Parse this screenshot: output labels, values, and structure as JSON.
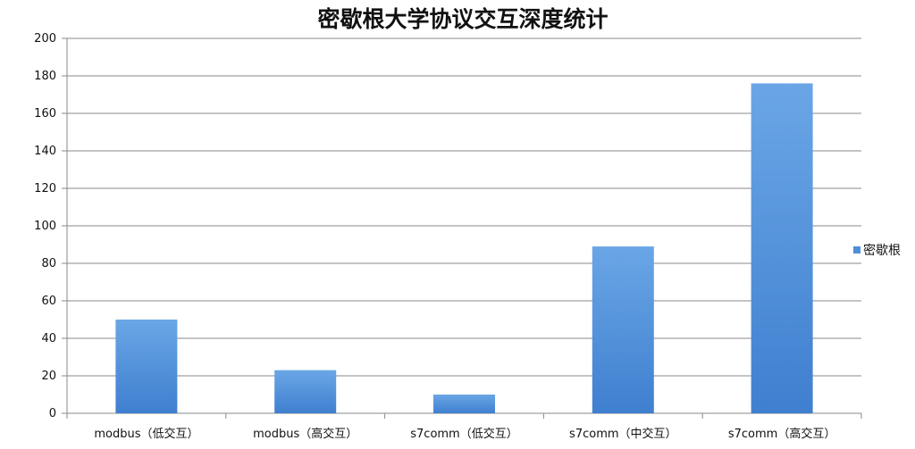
{
  "chart_data": {
    "type": "bar",
    "title": "密歇根大学协议交互深度统计",
    "categories": [
      "modbus（低交互）",
      "modbus（高交互）",
      "s7comm（低交互）",
      "s7comm（中交互）",
      "s7comm（高交互）"
    ],
    "series": [
      {
        "name": "密歇根",
        "values": [
          50,
          23,
          10,
          89,
          176
        ],
        "color": "#4f8fd6"
      }
    ],
    "ylim": [
      0,
      200
    ],
    "yticks": [
      0,
      20,
      40,
      60,
      80,
      100,
      120,
      140,
      160,
      180,
      200
    ],
    "grid": true,
    "legend_position": "right"
  }
}
